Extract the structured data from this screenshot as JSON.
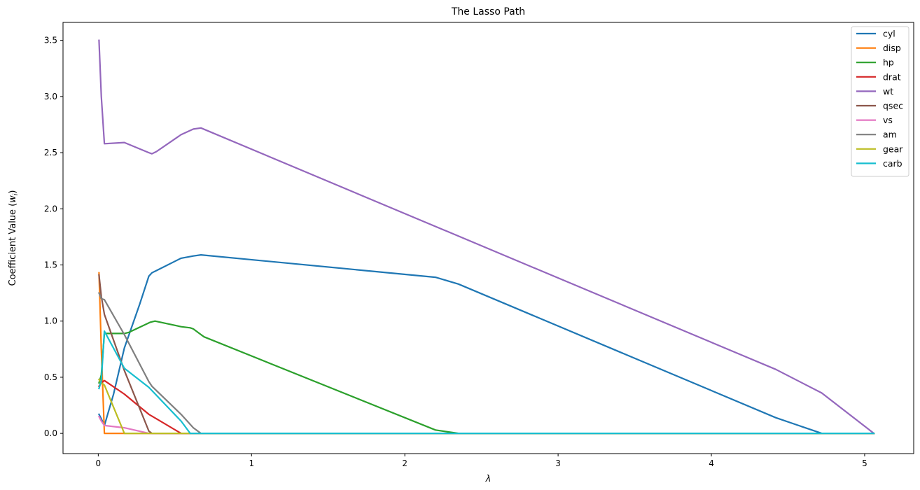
{
  "chart_data": {
    "type": "line",
    "title": "The Lasso Path",
    "xlabel": "λ",
    "ylabel_main": "Coefficient Value (",
    "ylabel_var": "w",
    "ylabel_sub": "i",
    "ylabel_end": ")",
    "xlim": [
      -0.23,
      5.32
    ],
    "ylim": [
      -0.18,
      3.66
    ],
    "xticks": [
      0,
      1,
      2,
      3,
      4,
      5
    ],
    "xtick_labels": [
      "0",
      "1",
      "2",
      "3",
      "4",
      "5"
    ],
    "yticks": [
      0.0,
      0.5,
      1.0,
      1.5,
      2.0,
      2.5,
      3.0,
      3.5
    ],
    "ytick_labels": [
      "0.0",
      "0.5",
      "1.0",
      "1.5",
      "2.0",
      "2.5",
      "3.0",
      "3.5"
    ],
    "grid": false,
    "legend_position": "top-right",
    "series": [
      {
        "name": "cyl",
        "color": "#1f77b4",
        "points": [
          [
            0.005,
            0.17
          ],
          [
            0.02,
            0.13
          ],
          [
            0.04,
            0.07
          ],
          [
            0.1,
            0.35
          ],
          [
            0.17,
            0.76
          ],
          [
            0.27,
            1.15
          ],
          [
            0.33,
            1.4
          ],
          [
            0.35,
            1.43
          ],
          [
            0.38,
            1.45
          ],
          [
            0.54,
            1.56
          ],
          [
            0.62,
            1.58
          ],
          [
            0.67,
            1.59
          ],
          [
            2.2,
            1.39
          ],
          [
            2.35,
            1.33
          ],
          [
            4.42,
            0.14
          ],
          [
            4.72,
            0.0
          ],
          [
            5.06,
            0.0
          ]
        ]
      },
      {
        "name": "disp",
        "color": "#ff7f0e",
        "points": [
          [
            0.005,
            1.43
          ],
          [
            0.02,
            0.75
          ],
          [
            0.04,
            0.0
          ],
          [
            0.1,
            0.0
          ],
          [
            5.06,
            0.0
          ]
        ]
      },
      {
        "name": "hp",
        "color": "#2ca02c",
        "points": [
          [
            0.005,
            0.45
          ],
          [
            0.02,
            0.52
          ],
          [
            0.04,
            0.89
          ],
          [
            0.17,
            0.89
          ],
          [
            0.2,
            0.9
          ],
          [
            0.34,
            0.99
          ],
          [
            0.37,
            1.0
          ],
          [
            0.54,
            0.95
          ],
          [
            0.6,
            0.94
          ],
          [
            0.62,
            0.93
          ],
          [
            0.67,
            0.88
          ],
          [
            0.69,
            0.86
          ],
          [
            2.2,
            0.03
          ],
          [
            2.35,
            0.0
          ],
          [
            5.06,
            0.0
          ]
        ]
      },
      {
        "name": "drat",
        "color": "#d62728",
        "points": [
          [
            0.005,
            0.42
          ],
          [
            0.02,
            0.45
          ],
          [
            0.04,
            0.47
          ],
          [
            0.17,
            0.35
          ],
          [
            0.33,
            0.17
          ],
          [
            0.38,
            0.13
          ],
          [
            0.54,
            0.0
          ],
          [
            5.06,
            0.0
          ]
        ]
      },
      {
        "name": "wt",
        "color": "#9467bd",
        "points": [
          [
            0.005,
            3.5
          ],
          [
            0.02,
            3.0
          ],
          [
            0.04,
            2.58
          ],
          [
            0.17,
            2.59
          ],
          [
            0.33,
            2.5
          ],
          [
            0.35,
            2.49
          ],
          [
            0.38,
            2.51
          ],
          [
            0.54,
            2.66
          ],
          [
            0.62,
            2.71
          ],
          [
            0.67,
            2.72
          ],
          [
            4.42,
            0.57
          ],
          [
            4.72,
            0.36
          ],
          [
            5.06,
            0.0
          ]
        ]
      },
      {
        "name": "qsec",
        "color": "#8c564b",
        "points": [
          [
            0.005,
            1.41
          ],
          [
            0.02,
            1.22
          ],
          [
            0.04,
            1.06
          ],
          [
            0.17,
            0.56
          ],
          [
            0.33,
            0.02
          ],
          [
            0.35,
            0.0
          ],
          [
            5.06,
            0.0
          ]
        ]
      },
      {
        "name": "vs",
        "color": "#e377c2",
        "points": [
          [
            0.005,
            0.15
          ],
          [
            0.02,
            0.11
          ],
          [
            0.04,
            0.07
          ],
          [
            0.17,
            0.05
          ],
          [
            0.33,
            0.0
          ],
          [
            5.06,
            0.0
          ]
        ]
      },
      {
        "name": "am",
        "color": "#7f7f7f",
        "points": [
          [
            0.005,
            1.25
          ],
          [
            0.02,
            1.2
          ],
          [
            0.04,
            1.19
          ],
          [
            0.17,
            0.88
          ],
          [
            0.33,
            0.46
          ],
          [
            0.35,
            0.42
          ],
          [
            0.54,
            0.17
          ],
          [
            0.62,
            0.05
          ],
          [
            0.67,
            0.0
          ],
          [
            5.06,
            0.0
          ]
        ]
      },
      {
        "name": "gear",
        "color": "#bcbd22",
        "points": [
          [
            0.005,
            0.48
          ],
          [
            0.02,
            0.45
          ],
          [
            0.04,
            0.43
          ],
          [
            0.17,
            0.0
          ],
          [
            5.06,
            0.0
          ]
        ]
      },
      {
        "name": "carb",
        "color": "#17becf",
        "points": [
          [
            0.005,
            0.4
          ],
          [
            0.02,
            0.47
          ],
          [
            0.04,
            0.91
          ],
          [
            0.17,
            0.58
          ],
          [
            0.33,
            0.41
          ],
          [
            0.54,
            0.11
          ],
          [
            0.6,
            0.0
          ],
          [
            5.06,
            0.0
          ]
        ]
      }
    ]
  }
}
